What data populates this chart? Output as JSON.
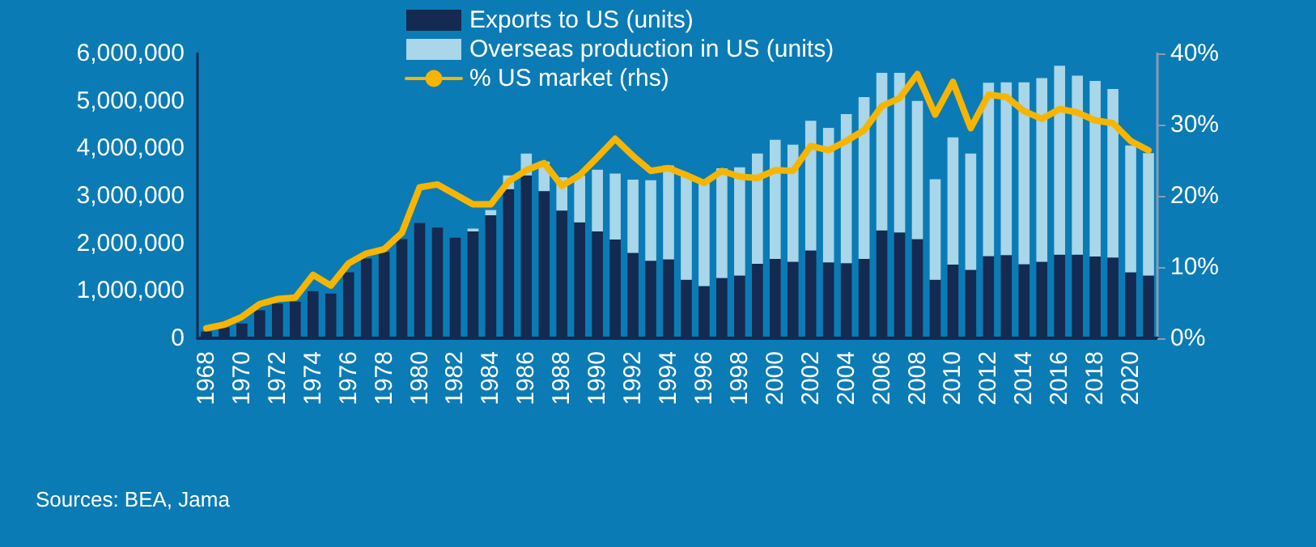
{
  "chart_data": {
    "type": "bar",
    "stacked": true,
    "legend": "top",
    "grid": false,
    "marker": "none",
    "line_style": "solid",
    "categories": [
      "1968",
      null,
      "1970",
      null,
      "1972",
      null,
      "1974",
      null,
      "1976",
      null,
      "1978",
      null,
      "1980",
      null,
      "1982",
      null,
      "1984",
      null,
      "1986",
      null,
      "1988",
      null,
      "1990",
      null,
      "1992",
      null,
      "1994",
      null,
      "1996",
      null,
      "1998",
      null,
      "2000",
      null,
      "2002",
      null,
      "2004",
      null,
      "2006",
      null,
      "2008",
      null,
      "2010",
      null,
      "2012",
      null,
      "2014",
      null,
      "2016",
      null,
      "2018",
      null,
      "2020",
      null
    ],
    "series": [
      {
        "name": "Exports to US (units)",
        "color": "#142a50",
        "values": [
          140000,
          230000,
          310000,
          590000,
          730000,
          770000,
          990000,
          940000,
          1390000,
          1680000,
          1820000,
          2090000,
          2430000,
          2330000,
          2120000,
          2250000,
          2590000,
          3140000,
          3430000,
          3100000,
          2690000,
          2440000,
          2250000,
          2080000,
          1800000,
          1630000,
          1660000,
          1230000,
          1100000,
          1270000,
          1320000,
          1570000,
          1670000,
          1610000,
          1850000,
          1600000,
          1580000,
          1670000,
          2270000,
          2230000,
          2090000,
          1230000,
          1550000,
          1440000,
          1730000,
          1750000,
          1560000,
          1610000,
          1760000,
          1760000,
          1720000,
          1700000,
          1390000,
          1320000
        ]
      },
      {
        "name": "Overseas production in US (units)",
        "color": "#a9d6e8",
        "values": [
          0,
          0,
          0,
          0,
          0,
          0,
          0,
          0,
          0,
          0,
          0,
          0,
          0,
          0,
          0,
          60000,
          110000,
          290000,
          460000,
          620000,
          700000,
          990000,
          1300000,
          1390000,
          1540000,
          1700000,
          1980000,
          2180000,
          2200000,
          2310000,
          2280000,
          2320000,
          2510000,
          2470000,
          2730000,
          2830000,
          3140000,
          3410000,
          3320000,
          3360000,
          2910000,
          2120000,
          2680000,
          2450000,
          3650000,
          3640000,
          3830000,
          3870000,
          3980000,
          3770000,
          3700000,
          3550000,
          2670000,
          2580000
        ]
      },
      {
        "name": "% US market (rhs)",
        "type": "line",
        "axis": "y2",
        "color": "#f7b500",
        "values": [
          1.4,
          1.9,
          3.0,
          4.8,
          5.5,
          5.7,
          8.9,
          7.4,
          10.5,
          11.9,
          12.5,
          14.8,
          21.2,
          21.6,
          20.2,
          18.8,
          18.8,
          22.0,
          23.6,
          24.6,
          21.4,
          22.9,
          25.4,
          28.0,
          25.6,
          23.5,
          23.9,
          22.9,
          21.8,
          23.5,
          22.7,
          22.5,
          23.6,
          23.5,
          27.0,
          26.4,
          27.7,
          29.2,
          32.6,
          33.7,
          37.1,
          31.4,
          36.0,
          29.5,
          34.2,
          33.9,
          31.9,
          30.8,
          32.2,
          31.7,
          30.6,
          30.2,
          27.7,
          26.4
        ]
      }
    ],
    "ylim": [
      0,
      6000000
    ],
    "yticks": [
      {
        "value": 0,
        "label": "0"
      },
      {
        "value": 1000000,
        "label": "1,000,000"
      },
      {
        "value": 2000000,
        "label": "2,000,000"
      },
      {
        "value": 3000000,
        "label": "3,000,000"
      },
      {
        "value": 4000000,
        "label": "4,000,000"
      },
      {
        "value": 5000000,
        "label": "5,000,000"
      },
      {
        "value": 6000000,
        "label": "6,000,000"
      }
    ],
    "y2lim": [
      0,
      40
    ],
    "y2ticks": [
      {
        "value": 0,
        "label": "0%"
      },
      {
        "value": 10,
        "label": "10%"
      },
      {
        "value": 20,
        "label": "20%"
      },
      {
        "value": 30,
        "label": "30%"
      },
      {
        "value": 40,
        "label": "40%"
      }
    ],
    "annotations": [
      "Sources: BEA, Jama"
    ]
  }
}
